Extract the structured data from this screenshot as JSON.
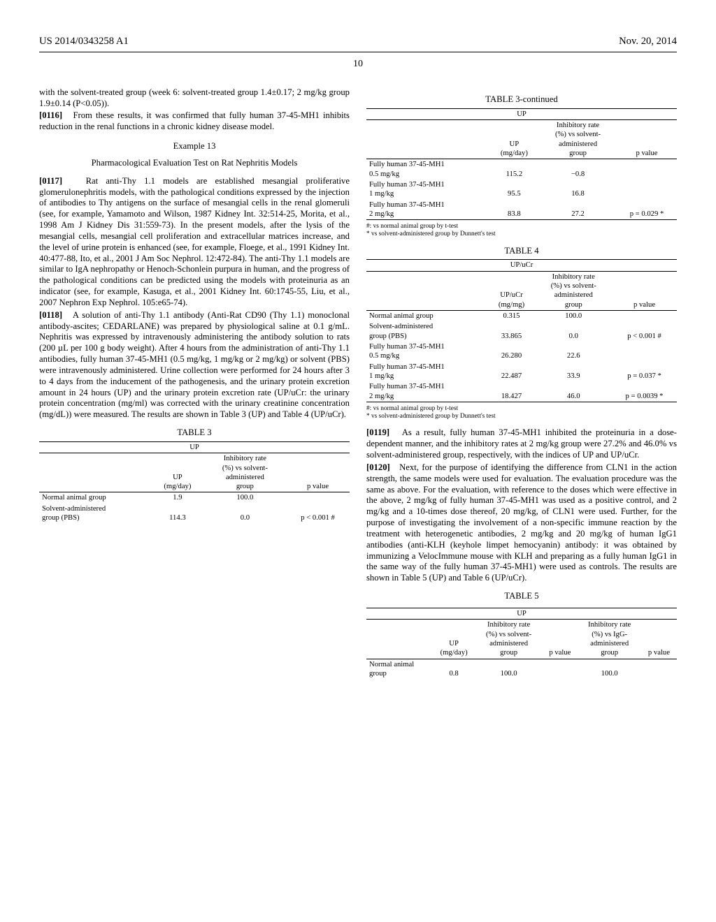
{
  "header": {
    "left": "US 2014/0343258 A1",
    "right": "Nov. 20, 2014",
    "page": "10"
  },
  "col1": {
    "lead_in": "with the solvent-treated group (week 6: solvent-treated group 1.4±0.17; 2 mg/kg group 1.9±0.14 (P<0.05)).",
    "p0116_num": "[0116]",
    "p0116": "From these results, it was confirmed that fully human 37-45-MH1 inhibits reduction in the renal functions in a chronic kidney disease model.",
    "ex13_label": "Example 13",
    "ex13_title": "Pharmacological Evaluation Test on Rat Nephritis Models",
    "p0117_num": "[0117]",
    "p0117": "Rat anti-Thy 1.1 models are established mesangial proliferative glomerulonephritis models, with the pathological conditions expressed by the injection of antibodies to Thy antigens on the surface of mesangial cells in the renal glomeruli (see, for example, Yamamoto and Wilson, 1987 Kidney Int. 32:514-25, Morita, et al., 1998 Am J Kidney Dis 31:559-73). In the present models, after the lysis of the mesangial cells, mesangial cell proliferation and extracellular matrices increase, and the level of urine protein is enhanced (see, for example, Floege, et al., 1991 Kidney Int. 40:477-88, Ito, et al., 2001 J Am Soc Nephrol. 12:472-84). The anti-Thy 1.1 models are similar to IgA nephropathy or Henoch-Schonlein purpura in human, and the progress of the pathological conditions can be predicted using the models with proteinuria as an indicator (see, for example, Kasuga, et al., 2001 Kidney Int. 60:1745-55, Liu, et al., 2007 Nephron Exp Nephrol. 105:e65-74).",
    "p0118_num": "[0118]",
    "p0118": "A solution of anti-Thy 1.1 antibody (Anti-Rat CD90 (Thy 1.1) monoclonal antibody-ascites; CEDARLANE) was prepared by physiological saline at 0.1 g/mL. Nephritis was expressed by intravenously administering the antibody solution to rats (200 µL per 100 g body weight). After 4 hours from the administration of anti-Thy 1.1 antibodies, fully human 37-45-MH1 (0.5 mg/kg, 1 mg/kg or 2 mg/kg) or solvent (PBS) were intravenously administered. Urine collection were performed for 24 hours after 3 to 4 days from the inducement of the pathogenesis, and the urinary protein excretion amount in 24 hours (UP) and the urinary protein excretion rate (UP/uCr: the urinary protein concentration (mg/ml) was corrected with the urinary creatinine concentration (mg/dL)) were measured. The results are shown in Table 3 (UP) and Table 4 (UP/uCr).",
    "table3": {
      "title": "TABLE 3",
      "caption": "UP",
      "headers": {
        "c1": "",
        "c2": "UP (mg/day)",
        "c3": "Inhibitory rate (%) vs solvent-administered group",
        "c4": "p value"
      },
      "rows": [
        {
          "label": "Normal animal group",
          "up": "1.9",
          "rate": "100.0",
          "p": ""
        },
        {
          "label": "Solvent-administered group (PBS)",
          "up": "114.3",
          "rate": "0.0",
          "p": "p < 0.001 #"
        }
      ]
    }
  },
  "col2": {
    "table3cont": {
      "title": "TABLE 3-continued",
      "caption": "UP",
      "headers": {
        "c2": "UP (mg/day)",
        "c3": "Inhibitory rate (%) vs solvent-administered group",
        "c4": "p value"
      },
      "rows": [
        {
          "label": "Fully human 37-45-MH1 0.5 mg/kg",
          "up": "115.2",
          "rate": "−0.8",
          "p": ""
        },
        {
          "label": "Fully human 37-45-MH1 1 mg/kg",
          "up": "95.5",
          "rate": "16.8",
          "p": ""
        },
        {
          "label": "Fully human 37-45-MH1 2 mg/kg",
          "up": "83.8",
          "rate": "27.2",
          "p": "p = 0.029 *"
        }
      ],
      "fn1": "#: vs normal animal group by t-test",
      "fn2": "* vs solvent-administered group by Dunnett's test"
    },
    "table4": {
      "title": "TABLE 4",
      "caption": "UP/uCr",
      "headers": {
        "c2": "UP/uCr (mg/mg)",
        "c3": "Inhibitory rate (%) vs solvent-administered group",
        "c4": "p value"
      },
      "rows": [
        {
          "label": "Normal animal group",
          "up": "0.315",
          "rate": "100.0",
          "p": ""
        },
        {
          "label": "Solvent-administered group (PBS)",
          "up": "33.865",
          "rate": "0.0",
          "p": "p < 0.001 #"
        },
        {
          "label": "Fully human 37-45-MH1 0.5 mg/kg",
          "up": "26.280",
          "rate": "22.6",
          "p": ""
        },
        {
          "label": "Fully human 37-45-MH1 1 mg/kg",
          "up": "22.487",
          "rate": "33.9",
          "p": "p = 0.037 *"
        },
        {
          "label": "Fully human 37-45-MH1 2 mg/kg",
          "up": "18.427",
          "rate": "46.0",
          "p": "p = 0.0039 *"
        }
      ],
      "fn1": "#: vs normal animal group by t-test",
      "fn2": "* vs solvent-administered group by Dunnett's test"
    },
    "p0119_num": "[0119]",
    "p0119": "As a result, fully human 37-45-MH1 inhibited the proteinuria in a dose-dependent manner, and the inhibitory rates at 2 mg/kg group were 27.2% and 46.0% vs solvent-administered group, respectively, with the indices of UP and UP/uCr.",
    "p0120_num": "[0120]",
    "p0120": "Next, for the purpose of identifying the difference from CLN1 in the action strength, the same models were used for evaluation. The evaluation procedure was the same as above. For the evaluation, with reference to the doses which were effective in the above, 2 mg/kg of fully human 37-45-MH1 was used as a positive control, and 2 mg/kg and a 10-times dose thereof, 20 mg/kg, of CLN1 were used. Further, for the purpose of investigating the involvement of a non-specific immune reaction by the treatment with heterogenetic antibodies, 2 mg/kg and 20 mg/kg of human IgG1 antibodies (anti-KLH (keyhole limpet hemocyanin) antibody: it was obtained by immunizing a VelocImmune mouse with KLH and preparing as a fully human IgG1 in the same way of the fully human 37-45-MH1) were used as controls. The results are shown in Table 5 (UP) and Table 6 (UP/uCr).",
    "table5": {
      "title": "TABLE 5",
      "caption": "UP",
      "headers": {
        "c1": "",
        "c2": "UP (mg/day)",
        "c3": "Inhibitory rate (%) vs solvent-administered group",
        "c4": "p value",
        "c5": "Inhibitory rate (%) vs IgG-administered group",
        "c6": "p value"
      },
      "rows": [
        {
          "label": "Normal animal group",
          "up": "0.8",
          "r1": "100.0",
          "p1": "",
          "r2": "100.0",
          "p2": ""
        }
      ]
    }
  }
}
